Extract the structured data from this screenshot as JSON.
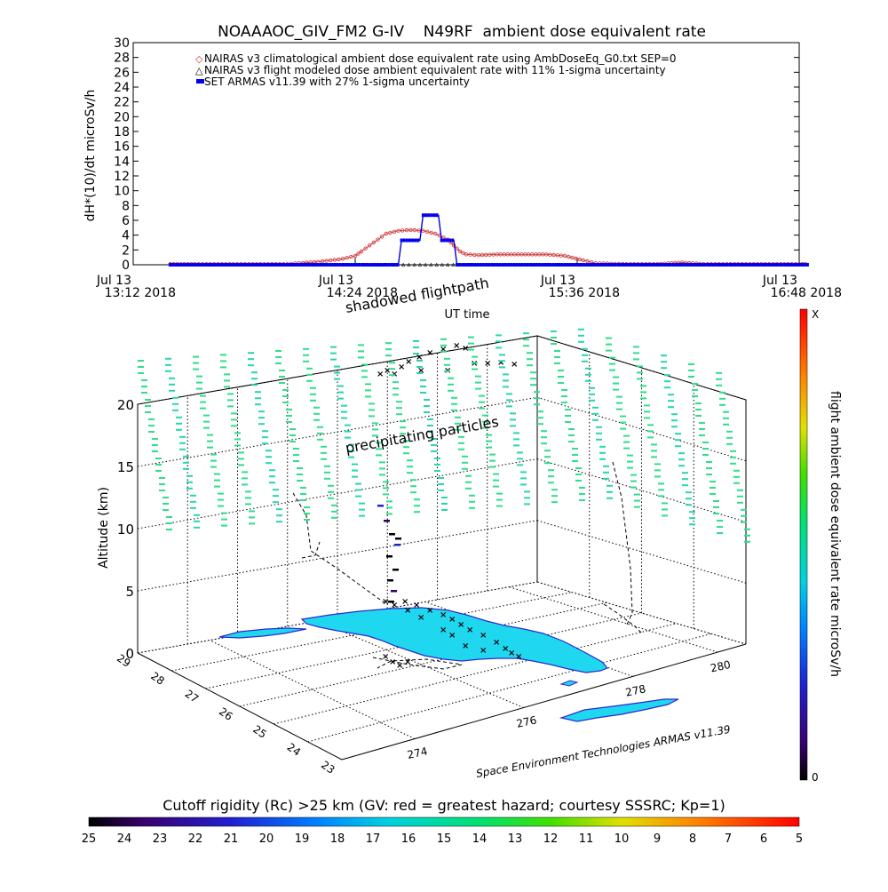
{
  "chart_data": [
    {
      "type": "line",
      "title": "NOAAAOC_GIV_FM2 G-IV    N49RF  ambient dose equivalent rate",
      "ylabel": "dH*(10)/dt microSv/h",
      "xlabel": "UT time",
      "ylim": [
        0,
        30
      ],
      "y_ticks": [
        "0",
        "2",
        "4",
        "6",
        "8",
        "10",
        "12",
        "14",
        "16",
        "18",
        "20",
        "22",
        "24",
        "26",
        "28",
        "30"
      ],
      "x_ticks": [
        {
          "line1": "Jul 13",
          "line2": "13:12 2018",
          "t": 0
        },
        {
          "line1": "Jul 13",
          "line2": "14:24 2018",
          "t": 72
        },
        {
          "line1": "Jul 13",
          "line2": "15:36 2018",
          "t": 144
        },
        {
          "line1": "Jul 13",
          "line2": "16:48 2018",
          "t": 216
        }
      ],
      "legend_placement": "top",
      "legend": [
        {
          "label": "NAIRAS v3 climatological ambient dose equivalent rate using AmbDoseEq_G0.txt SEP=0",
          "color": "#cc3333",
          "marker": "circle"
        },
        {
          "label": "NAIRAS v3 flight modeled dose ambient equivalent rate with 11% 1-sigma uncertainty",
          "color": "#000000",
          "marker": "triangle"
        },
        {
          "label": "SET ARMAS v11.39 with 27% 1-sigma uncertainty",
          "color": "#0000ee",
          "marker": "square"
        }
      ],
      "series": [
        {
          "name": "NAIRAS v3 climatological ambient dose equivalent rate using AmbDoseEq_G0.txt SEP=0",
          "color": "#cc3333",
          "x": [
            12,
            20,
            30,
            40,
            50,
            60,
            64,
            68,
            72,
            74,
            78,
            82,
            86,
            90,
            94,
            98,
            102,
            104,
            106,
            108,
            112,
            118,
            126,
            134,
            140,
            146,
            150,
            160,
            170,
            178,
            185,
            190,
            200,
            210,
            216,
            219
          ],
          "y": [
            0.1,
            0.1,
            0.1,
            0.1,
            0.1,
            0.4,
            0.6,
            0.8,
            1.2,
            1.8,
            3.0,
            4.2,
            4.6,
            4.7,
            4.6,
            4.2,
            3.4,
            2.6,
            1.8,
            1.4,
            1.3,
            1.4,
            1.4,
            1.4,
            1.2,
            0.6,
            0.2,
            0.1,
            0.1,
            0.3,
            0.1,
            0.1,
            0.1,
            0.1,
            0.1,
            0.1
          ]
        },
        {
          "name": "NAIRAS v3 flight modeled dose ambient equivalent rate with 11% 1-sigma uncertainty",
          "color": "#000000",
          "x": [
            12,
            40,
            60,
            80,
            90,
            100,
            110,
            130,
            150,
            180,
            219
          ],
          "y": [
            0,
            0,
            0,
            0,
            0,
            0,
            0,
            0,
            0,
            0,
            0
          ]
        },
        {
          "name": "SET ARMAS v11.39 with 27% 1-sigma uncertainty",
          "color": "#0000ee",
          "x": [
            12,
            40,
            60,
            75,
            82,
            86,
            87,
            93,
            94,
            99,
            100,
            104,
            105,
            110,
            130,
            150,
            180,
            219
          ],
          "y": [
            0,
            0,
            0,
            0,
            0,
            0,
            3.3,
            3.3,
            6.7,
            6.7,
            3.3,
            3.3,
            0,
            0,
            0,
            0,
            0,
            0
          ]
        }
      ]
    },
    {
      "type": "scatter",
      "title": "",
      "annotations": [
        "shadowed flightpath",
        "precipitating particles",
        "Space Environment Technologies ARMAS v11.39"
      ],
      "zlabel": "Altitude (km)",
      "z_ticks": [
        "0",
        "5",
        "10",
        "15",
        "20"
      ],
      "lat_ticks": [
        "23",
        "24",
        "25",
        "26",
        "27",
        "28",
        "29"
      ],
      "lon_ticks": [
        "274",
        "276",
        "278",
        "280"
      ],
      "colorbar": {
        "label": "flight ambient dose equivalent rate microSv/h",
        "max_label": "X",
        "min_label": "0"
      }
    },
    {
      "type": "heatmap",
      "title": "Cutoff rigidity (Rc) >25 km (GV: red = greatest hazard; courtesy SSSRC; Kp=1)",
      "tick_labels": [
        "25",
        "24",
        "23",
        "22",
        "21",
        "20",
        "19",
        "18",
        "17",
        "16",
        "15",
        "14",
        "13",
        "12",
        "11",
        "10",
        "9",
        "8",
        "7",
        "6",
        "5"
      ]
    }
  ],
  "colors": {
    "climatological": "#cc3333",
    "armas": "#0000ee",
    "land": "#1fd8f0",
    "particles": "#2de08a",
    "coast": "#2a2ad0"
  }
}
